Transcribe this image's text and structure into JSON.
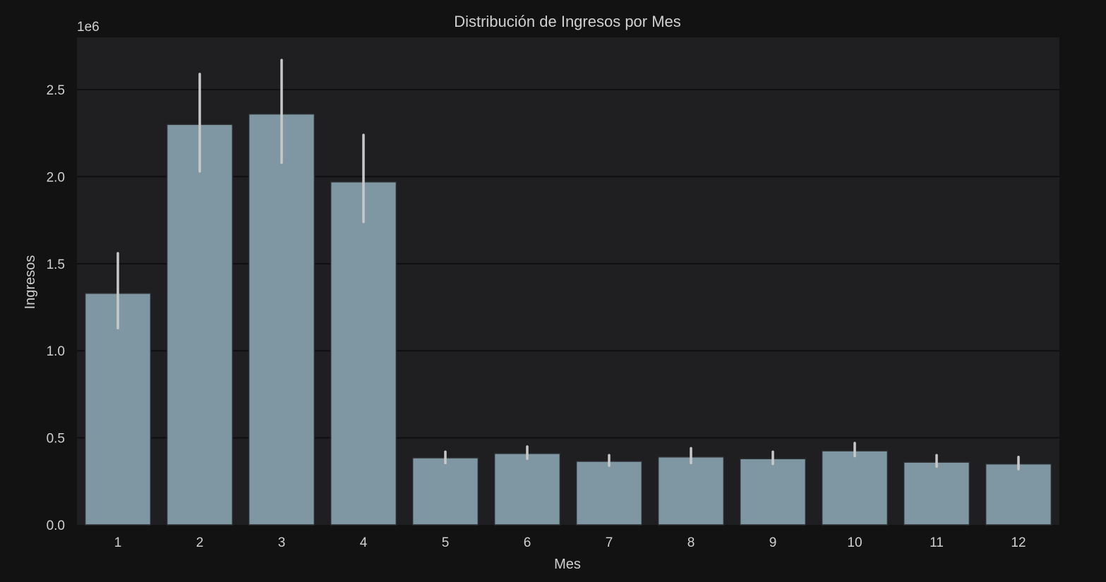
{
  "chart_data": {
    "type": "bar",
    "title": "Distribución de Ingresos por Mes",
    "xlabel": "Mes",
    "ylabel": "Ingresos",
    "y_offset_label": "1e6",
    "categories": [
      "1",
      "2",
      "3",
      "4",
      "5",
      "6",
      "7",
      "8",
      "9",
      "10",
      "11",
      "12"
    ],
    "values": [
      1.33,
      2.3,
      2.36,
      1.97,
      0.385,
      0.41,
      0.365,
      0.39,
      0.38,
      0.425,
      0.36,
      0.35
    ],
    "error_low": [
      1.13,
      2.03,
      2.08,
      1.74,
      0.355,
      0.38,
      0.34,
      0.355,
      0.35,
      0.395,
      0.335,
      0.32
    ],
    "error_high": [
      1.56,
      2.59,
      2.67,
      2.24,
      0.42,
      0.45,
      0.4,
      0.44,
      0.42,
      0.47,
      0.4,
      0.39
    ],
    "value_scale": "1e6",
    "ylim": [
      0,
      2.8
    ],
    "yticks": [
      0.0,
      0.5,
      1.0,
      1.5,
      2.0,
      2.5
    ],
    "ytick_labels": [
      "0.0",
      "0.5",
      "1.0",
      "1.5",
      "2.0",
      "2.5"
    ],
    "grid": true,
    "colors": {
      "figure_bg": "#121212",
      "axes_bg": "#1f1f22",
      "bar": "#7f96a3",
      "bar_edge": "#2a2d30",
      "errorbar": "#c8c8c8",
      "grid": "#0f0f10",
      "text": "#d0d0d0"
    }
  }
}
